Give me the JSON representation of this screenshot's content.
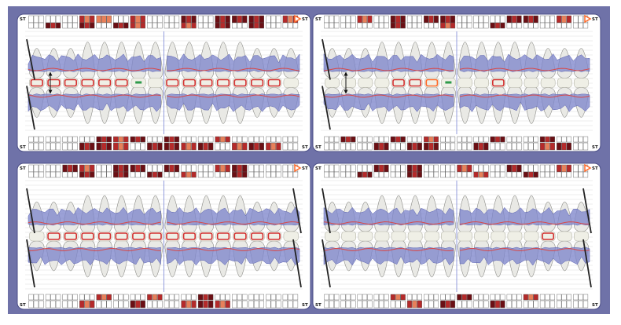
{
  "colors": {
    "frame": "#6f72a8",
    "panel_bg": "#ffffff",
    "gum": "#7f86cc",
    "gum_line": "#d94848",
    "tooth_fill": "#e9e9e5",
    "tooth_stroke": "#8a8a86",
    "cell_dark": "#6b0f14",
    "cell_mid": "#b52a2a",
    "cell_light": "#e8805a",
    "marker_orange": "#ff6a2a",
    "mid_line": "#7a86d6",
    "ruler": "#222222",
    "occlusal_red": "#d33030",
    "occlusal_green": "#2e9a4a"
  },
  "icons": {
    "next_marker": "triangle-right-icon",
    "prev_marker": "triangle-right-icon",
    "measure_arrow": "double-arrow-vertical-icon"
  },
  "labels": {
    "site_label": "ST"
  },
  "panels": [
    {
      "id": "upper-left",
      "top_row": [
        0,
        0,
        0,
        2,
        1,
        0,
        2,
        0,
        0,
        3,
        0,
        3,
        3,
        3,
        0,
        2
      ],
      "bottom_row": [
        0,
        0,
        0,
        3,
        3,
        2,
        0,
        3,
        3,
        2,
        3,
        0,
        2,
        3,
        2,
        0
      ],
      "top_lower_row": [
        0,
        3,
        0,
        3,
        0,
        3,
        2,
        0,
        0,
        2,
        0,
        3,
        0,
        3,
        0,
        0
      ],
      "bottom_upper_row": [
        0,
        0,
        0,
        0,
        3,
        2,
        3,
        0,
        3,
        0,
        0,
        2,
        0,
        0,
        0,
        0
      ],
      "occlusal": [
        "r",
        "r",
        "r",
        "r",
        "r",
        "r",
        "g",
        "n",
        "r",
        "r",
        "r",
        "r",
        "r",
        "r",
        "r",
        "n"
      ],
      "arrows": true,
      "rulers_left": true,
      "rulers_right": false
    },
    {
      "id": "upper-right",
      "top_row": [
        0,
        0,
        2,
        0,
        3,
        0,
        3,
        3,
        0,
        0,
        0,
        3,
        3,
        0,
        2,
        0
      ],
      "bottom_row": [
        0,
        0,
        0,
        3,
        0,
        3,
        3,
        0,
        0,
        3,
        0,
        0,
        0,
        2,
        3,
        0
      ],
      "top_lower_row": [
        0,
        0,
        0,
        0,
        3,
        0,
        0,
        2,
        0,
        0,
        3,
        0,
        0,
        0,
        0,
        0
      ],
      "bottom_upper_row": [
        0,
        3,
        0,
        0,
        3,
        0,
        2,
        0,
        0,
        0,
        3,
        0,
        0,
        3,
        0,
        0
      ],
      "occlusal": [
        "n",
        "n",
        "n",
        "n",
        "r",
        "r",
        "o",
        "g",
        "n",
        "n",
        "r",
        "n",
        "n",
        "n",
        "n",
        "n"
      ],
      "arrows": true,
      "rulers_left": true,
      "rulers_right": false
    },
    {
      "id": "lower-left",
      "top_row": [
        0,
        0,
        3,
        2,
        0,
        3,
        3,
        0,
        3,
        0,
        0,
        2,
        3,
        0,
        0,
        0
      ],
      "bottom_row": [
        0,
        0,
        0,
        2,
        0,
        0,
        3,
        0,
        0,
        2,
        3,
        2,
        0,
        0,
        0,
        0
      ],
      "top_lower_row": [
        0,
        0,
        0,
        3,
        0,
        3,
        0,
        3,
        0,
        2,
        0,
        0,
        3,
        0,
        0,
        0
      ],
      "bottom_upper_row": [
        0,
        0,
        0,
        0,
        2,
        0,
        0,
        2,
        0,
        0,
        3,
        0,
        0,
        0,
        0,
        0
      ],
      "occlusal": [
        "n",
        "r",
        "r",
        "r",
        "r",
        "r",
        "r",
        "r",
        "r",
        "r",
        "r",
        "r",
        "r",
        "r",
        "r",
        "n"
      ],
      "arrows": false,
      "rulers_left": true,
      "rulers_right": true
    },
    {
      "id": "lower-right",
      "top_row": [
        0,
        0,
        0,
        3,
        0,
        3,
        0,
        0,
        2,
        0,
        0,
        3,
        0,
        0,
        2,
        0
      ],
      "bottom_row": [
        0,
        0,
        0,
        0,
        0,
        2,
        0,
        3,
        0,
        0,
        3,
        0,
        0,
        0,
        0,
        0
      ],
      "top_lower_row": [
        0,
        0,
        3,
        0,
        0,
        3,
        0,
        0,
        0,
        2,
        0,
        0,
        3,
        0,
        0,
        0
      ],
      "bottom_upper_row": [
        0,
        0,
        0,
        0,
        2,
        0,
        0,
        0,
        3,
        0,
        0,
        0,
        2,
        0,
        0,
        0
      ],
      "occlusal": [
        "n",
        "n",
        "n",
        "n",
        "n",
        "n",
        "n",
        "n",
        "n",
        "n",
        "n",
        "n",
        "n",
        "r",
        "n",
        "n"
      ],
      "arrows": false,
      "rulers_left": true,
      "rulers_right": true
    }
  ]
}
